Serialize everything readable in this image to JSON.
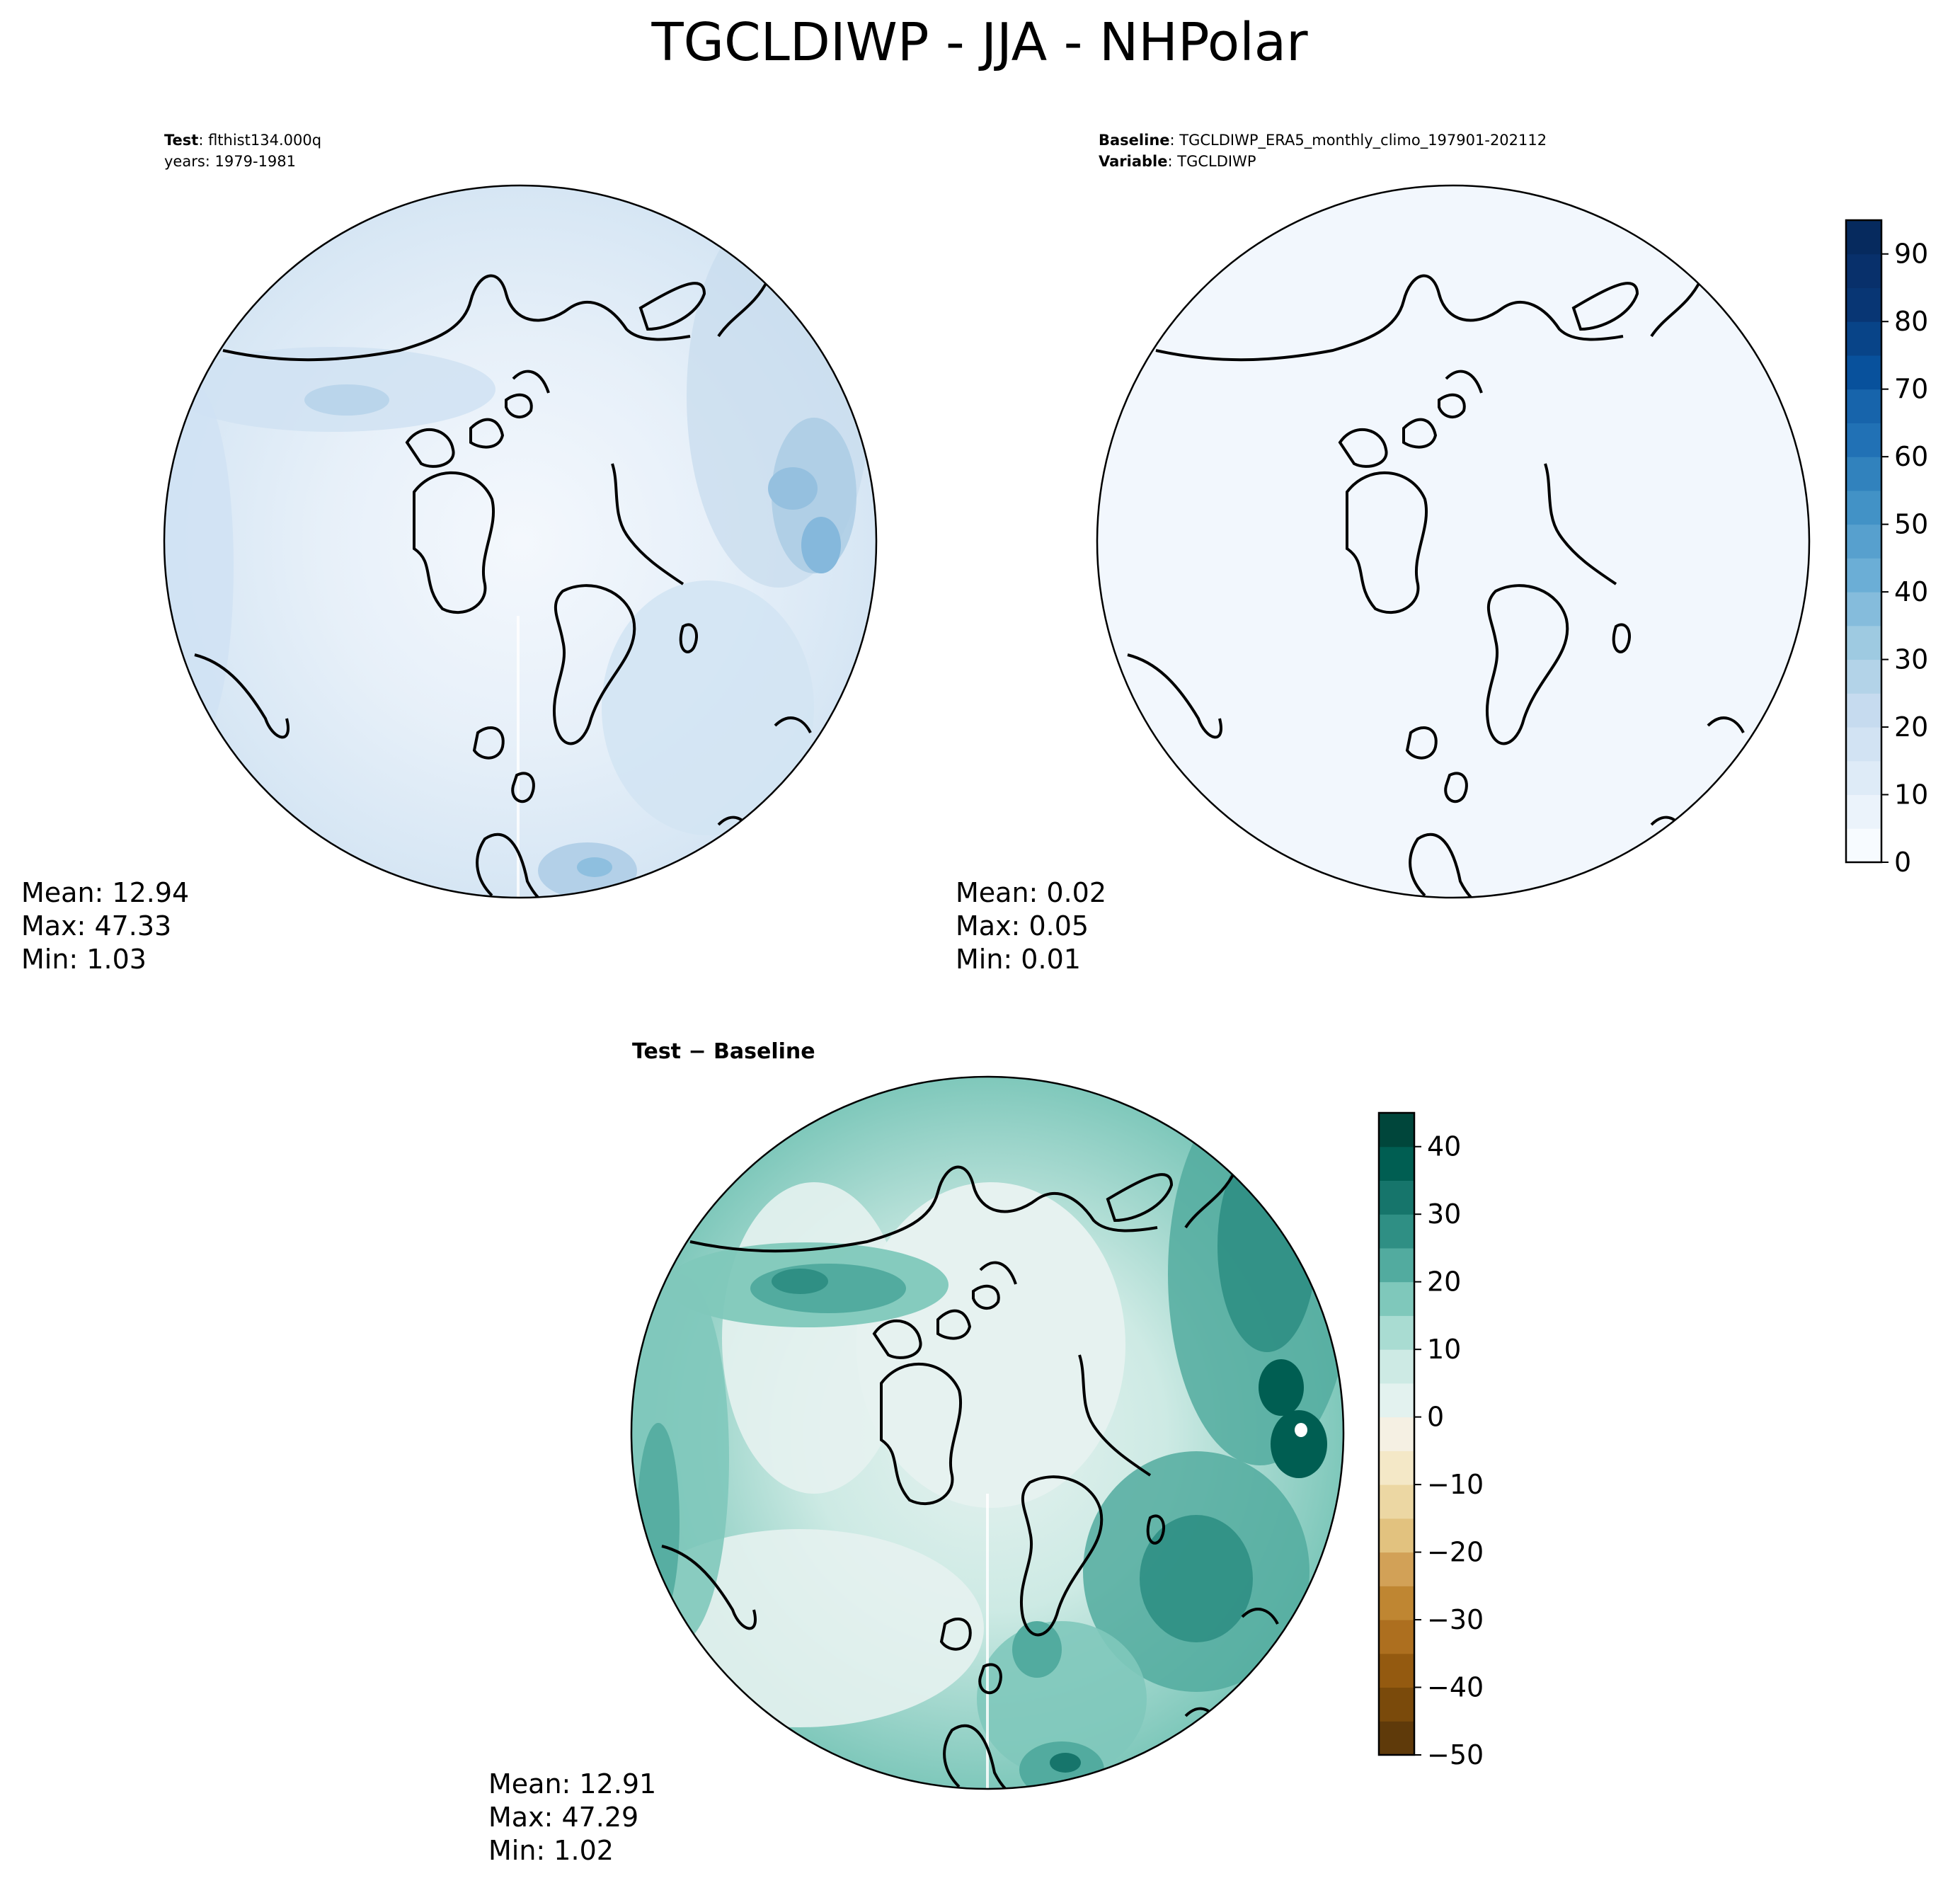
{
  "title": "TGCLDIWP - JJA - NHPolar",
  "panels": {
    "test": {
      "label_bold": "Test",
      "label_value": ": flthist134.000q",
      "years_line": "years: 1979-1981",
      "stats": {
        "mean": "Mean: 12.94",
        "max": "Max: 47.33",
        "min": "Min:  1.03"
      }
    },
    "baseline": {
      "label_bold": "Baseline",
      "label_value": ": TGCLDIWP_ERA5_monthly_climo_197901-202112",
      "variable_bold": "Variable",
      "variable_value": ": TGCLDIWP",
      "stats": {
        "mean": "Mean:  0.02",
        "max": "Max:  0.05",
        "min": "Min:  0.01"
      }
    },
    "difference": {
      "title": "Test − Baseline",
      "stats": {
        "mean": "Mean: 12.91",
        "max": "Max: 47.29",
        "min": "Min:  1.02"
      }
    }
  },
  "colorbars": {
    "sequential": {
      "colormap": "Blues",
      "range": [
        0,
        95
      ],
      "levels": 19,
      "ticks": [
        "0",
        "10",
        "20",
        "30",
        "40",
        "50",
        "60",
        "70",
        "80",
        "90"
      ],
      "colors": [
        "#f7fbff",
        "#ebf3fb",
        "#deebf7",
        "#d2e3f3",
        "#c6dbef",
        "#b3d3e8",
        "#9ecae1",
        "#85bcdc",
        "#6baed6",
        "#57a0ce",
        "#4292c6",
        "#3182bd",
        "#2171b5",
        "#1764ab",
        "#08519c",
        "#084488",
        "#083674",
        "#08306b",
        "#062a5e"
      ]
    },
    "difference": {
      "colormap": "BrBG",
      "range": [
        -50,
        45
      ],
      "levels": 19,
      "ticks": [
        "−50",
        "−40",
        "−30",
        "−20",
        "−10",
        "0",
        "10",
        "20",
        "30",
        "40"
      ],
      "colors": [
        "#5f3a0a",
        "#7a4a0b",
        "#945a10",
        "#ad6f1f",
        "#bf8632",
        "#d2a157",
        "#e2c27f",
        "#ecd7a3",
        "#f4e8c7",
        "#f5f0e3",
        "#e3f2ef",
        "#cdeae4",
        "#a9dcd2",
        "#7fc8bb",
        "#52ab9f",
        "#2f8f84",
        "#16756b",
        "#005e52",
        "#00463b"
      ]
    }
  }
}
